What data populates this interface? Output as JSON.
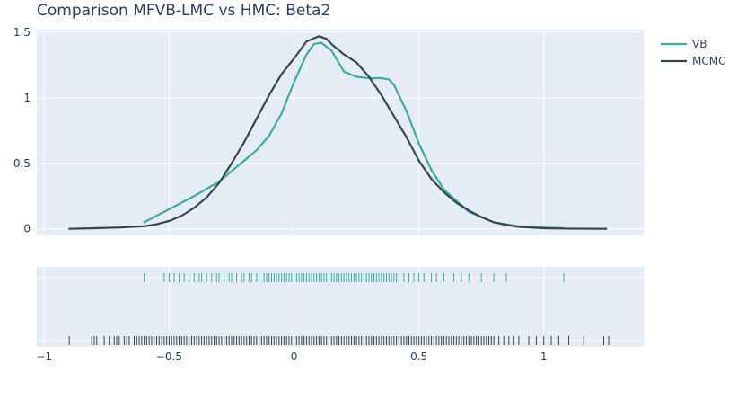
{
  "title": "Comparison MFVB-LMC vs HMC: Beta2",
  "legend": {
    "placement": "top-right",
    "items": [
      {
        "name": "VB",
        "color": "#3aab9f"
      },
      {
        "name": "MCMC",
        "color": "#36454f"
      }
    ]
  },
  "chart_data": [
    {
      "type": "line",
      "title": "Comparison MFVB-LMC vs HMC: Beta2",
      "xlabel": "",
      "ylabel": "",
      "xlim": [
        -1.03,
        1.4
      ],
      "ylim": [
        -0.05,
        1.52
      ],
      "grid": true,
      "xticks": [
        -1,
        -0.5,
        0,
        0.5,
        1
      ],
      "yticks": [
        0,
        0.5,
        1,
        1.5
      ],
      "ytick_labels": [
        "0",
        "0.5",
        "1",
        "1.5"
      ],
      "series": [
        {
          "name": "VB",
          "color": "#3aab9f",
          "x": [
            -0.6,
            -0.5,
            -0.4,
            -0.3,
            -0.25,
            -0.2,
            -0.15,
            -0.1,
            -0.05,
            0.0,
            0.05,
            0.08,
            0.11,
            0.15,
            0.2,
            0.25,
            0.3,
            0.35,
            0.38,
            0.4,
            0.45,
            0.5,
            0.55,
            0.6,
            0.7,
            0.8,
            0.9,
            1.0,
            1.08
          ],
          "y": [
            0.05,
            0.15,
            0.25,
            0.36,
            0.44,
            0.52,
            0.6,
            0.71,
            0.88,
            1.12,
            1.33,
            1.41,
            1.42,
            1.36,
            1.2,
            1.16,
            1.15,
            1.15,
            1.14,
            1.1,
            0.9,
            0.65,
            0.45,
            0.3,
            0.13,
            0.05,
            0.02,
            0.01,
            0.005
          ]
        },
        {
          "name": "MCMC",
          "color": "#36454f",
          "x": [
            -0.9,
            -0.8,
            -0.7,
            -0.6,
            -0.55,
            -0.5,
            -0.45,
            -0.4,
            -0.35,
            -0.3,
            -0.25,
            -0.2,
            -0.15,
            -0.1,
            -0.05,
            0.0,
            0.05,
            0.1,
            0.13,
            0.15,
            0.2,
            0.25,
            0.3,
            0.35,
            0.4,
            0.45,
            0.5,
            0.55,
            0.6,
            0.65,
            0.7,
            0.75,
            0.8,
            0.85,
            0.9,
            1.0,
            1.1,
            1.25
          ],
          "y": [
            0.0,
            0.005,
            0.01,
            0.02,
            0.035,
            0.06,
            0.1,
            0.16,
            0.24,
            0.35,
            0.5,
            0.66,
            0.84,
            1.02,
            1.18,
            1.3,
            1.43,
            1.47,
            1.45,
            1.41,
            1.33,
            1.27,
            1.16,
            1.02,
            0.86,
            0.7,
            0.52,
            0.38,
            0.28,
            0.2,
            0.14,
            0.09,
            0.05,
            0.03,
            0.015,
            0.005,
            0.002,
            0.0
          ]
        }
      ]
    },
    {
      "type": "scatter",
      "subtype": "rug",
      "xlabel": "",
      "ylabel": "",
      "xlim": [
        -1.03,
        1.4
      ],
      "grid": true,
      "xticks": [
        -1,
        -0.5,
        0,
        0.5,
        1
      ],
      "xtick_labels": [
        "−1",
        "−0.5",
        "0",
        "0.5",
        "1"
      ],
      "series": [
        {
          "name": "VB",
          "color": "#3aab9f",
          "x": [
            -0.6,
            -0.52,
            -0.5,
            -0.48,
            -0.46,
            -0.44,
            -0.42,
            -0.4,
            -0.38,
            -0.37,
            -0.35,
            -0.33,
            -0.31,
            -0.3,
            -0.28,
            -0.26,
            -0.25,
            -0.23,
            -0.21,
            -0.2,
            -0.18,
            -0.17,
            -0.15,
            -0.14,
            -0.12,
            -0.11,
            -0.1,
            -0.09,
            -0.08,
            -0.07,
            -0.06,
            -0.05,
            -0.04,
            -0.03,
            -0.02,
            -0.01,
            0.0,
            0.01,
            0.02,
            0.03,
            0.04,
            0.05,
            0.06,
            0.07,
            0.08,
            0.09,
            0.1,
            0.11,
            0.12,
            0.13,
            0.14,
            0.15,
            0.16,
            0.17,
            0.18,
            0.19,
            0.2,
            0.21,
            0.22,
            0.23,
            0.24,
            0.25,
            0.26,
            0.27,
            0.28,
            0.29,
            0.3,
            0.31,
            0.32,
            0.33,
            0.34,
            0.35,
            0.36,
            0.37,
            0.38,
            0.39,
            0.4,
            0.41,
            0.42,
            0.44,
            0.46,
            0.48,
            0.5,
            0.52,
            0.55,
            0.57,
            0.6,
            0.64,
            0.67,
            0.7,
            0.75,
            0.8,
            0.85,
            1.08
          ]
        },
        {
          "name": "MCMC",
          "color": "#36454f",
          "x": [
            -0.9,
            -0.81,
            -0.8,
            -0.79,
            -0.76,
            -0.74,
            -0.72,
            -0.71,
            -0.7,
            -0.68,
            -0.67,
            -0.66,
            -0.64,
            -0.63,
            -0.62,
            -0.61,
            -0.6,
            -0.59,
            -0.58,
            -0.57,
            -0.56,
            -0.55,
            -0.54,
            -0.53,
            -0.52,
            -0.51,
            -0.5,
            -0.49,
            -0.48,
            -0.47,
            -0.46,
            -0.45,
            -0.44,
            -0.43,
            -0.42,
            -0.41,
            -0.4,
            -0.39,
            -0.38,
            -0.37,
            -0.36,
            -0.35,
            -0.34,
            -0.33,
            -0.32,
            -0.31,
            -0.3,
            -0.29,
            -0.28,
            -0.27,
            -0.26,
            -0.25,
            -0.24,
            -0.23,
            -0.22,
            -0.21,
            -0.2,
            -0.19,
            -0.18,
            -0.17,
            -0.16,
            -0.15,
            -0.14,
            -0.13,
            -0.12,
            -0.11,
            -0.1,
            -0.09,
            -0.08,
            -0.07,
            -0.06,
            -0.05,
            -0.04,
            -0.03,
            -0.02,
            -0.01,
            0.0,
            0.01,
            0.02,
            0.03,
            0.04,
            0.05,
            0.06,
            0.07,
            0.08,
            0.09,
            0.1,
            0.11,
            0.12,
            0.13,
            0.14,
            0.15,
            0.16,
            0.17,
            0.18,
            0.19,
            0.2,
            0.21,
            0.22,
            0.23,
            0.24,
            0.25,
            0.26,
            0.27,
            0.28,
            0.29,
            0.3,
            0.31,
            0.32,
            0.33,
            0.34,
            0.35,
            0.36,
            0.37,
            0.38,
            0.39,
            0.4,
            0.41,
            0.42,
            0.43,
            0.44,
            0.45,
            0.46,
            0.47,
            0.48,
            0.49,
            0.5,
            0.51,
            0.52,
            0.53,
            0.54,
            0.55,
            0.56,
            0.57,
            0.58,
            0.59,
            0.6,
            0.61,
            0.62,
            0.63,
            0.64,
            0.65,
            0.66,
            0.67,
            0.68,
            0.69,
            0.7,
            0.71,
            0.72,
            0.73,
            0.74,
            0.75,
            0.76,
            0.77,
            0.78,
            0.79,
            0.8,
            0.82,
            0.84,
            0.86,
            0.88,
            0.9,
            0.94,
            0.97,
            1.0,
            1.03,
            1.06,
            1.1,
            1.16,
            1.24,
            1.26
          ]
        }
      ]
    }
  ]
}
